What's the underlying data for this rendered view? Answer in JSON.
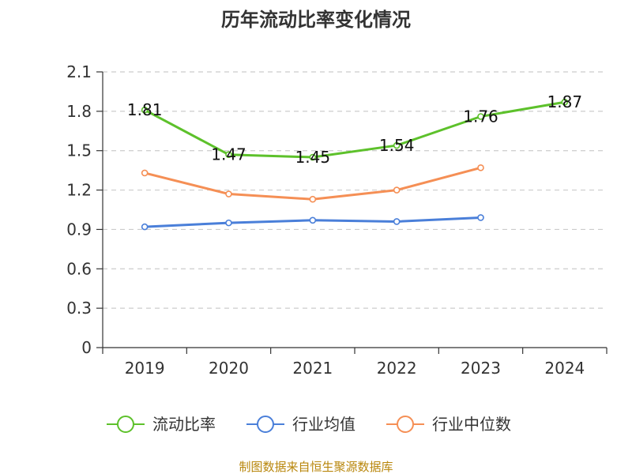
{
  "chart_data": {
    "type": "line",
    "title": "历年流动比率变化情况",
    "categories": [
      "2019",
      "2020",
      "2021",
      "2022",
      "2023",
      "2024"
    ],
    "yticks": [
      "0",
      "0.3",
      "0.6",
      "0.9",
      "1.2",
      "1.5",
      "1.8",
      "2.1"
    ],
    "ylim": [
      0,
      2.1
    ],
    "grid": true,
    "legend_position": "bottom",
    "series": [
      {
        "name": "流动比率",
        "color": "#5dc12b",
        "values": [
          1.81,
          1.47,
          1.45,
          1.54,
          1.76,
          1.87
        ],
        "labels": [
          "1.81",
          "1.47",
          "1.45",
          "1.54",
          "1.76",
          "1.87"
        ],
        "show_labels": true
      },
      {
        "name": "行业均值",
        "color": "#4a7fd9",
        "values": [
          0.92,
          0.95,
          0.97,
          0.96,
          0.99,
          null
        ],
        "show_labels": false
      },
      {
        "name": "行业中位数",
        "color": "#f58f55",
        "values": [
          1.33,
          1.17,
          1.13,
          1.2,
          1.37,
          null
        ],
        "show_labels": false
      }
    ]
  },
  "source": "制图数据来自恒生聚源数据库"
}
